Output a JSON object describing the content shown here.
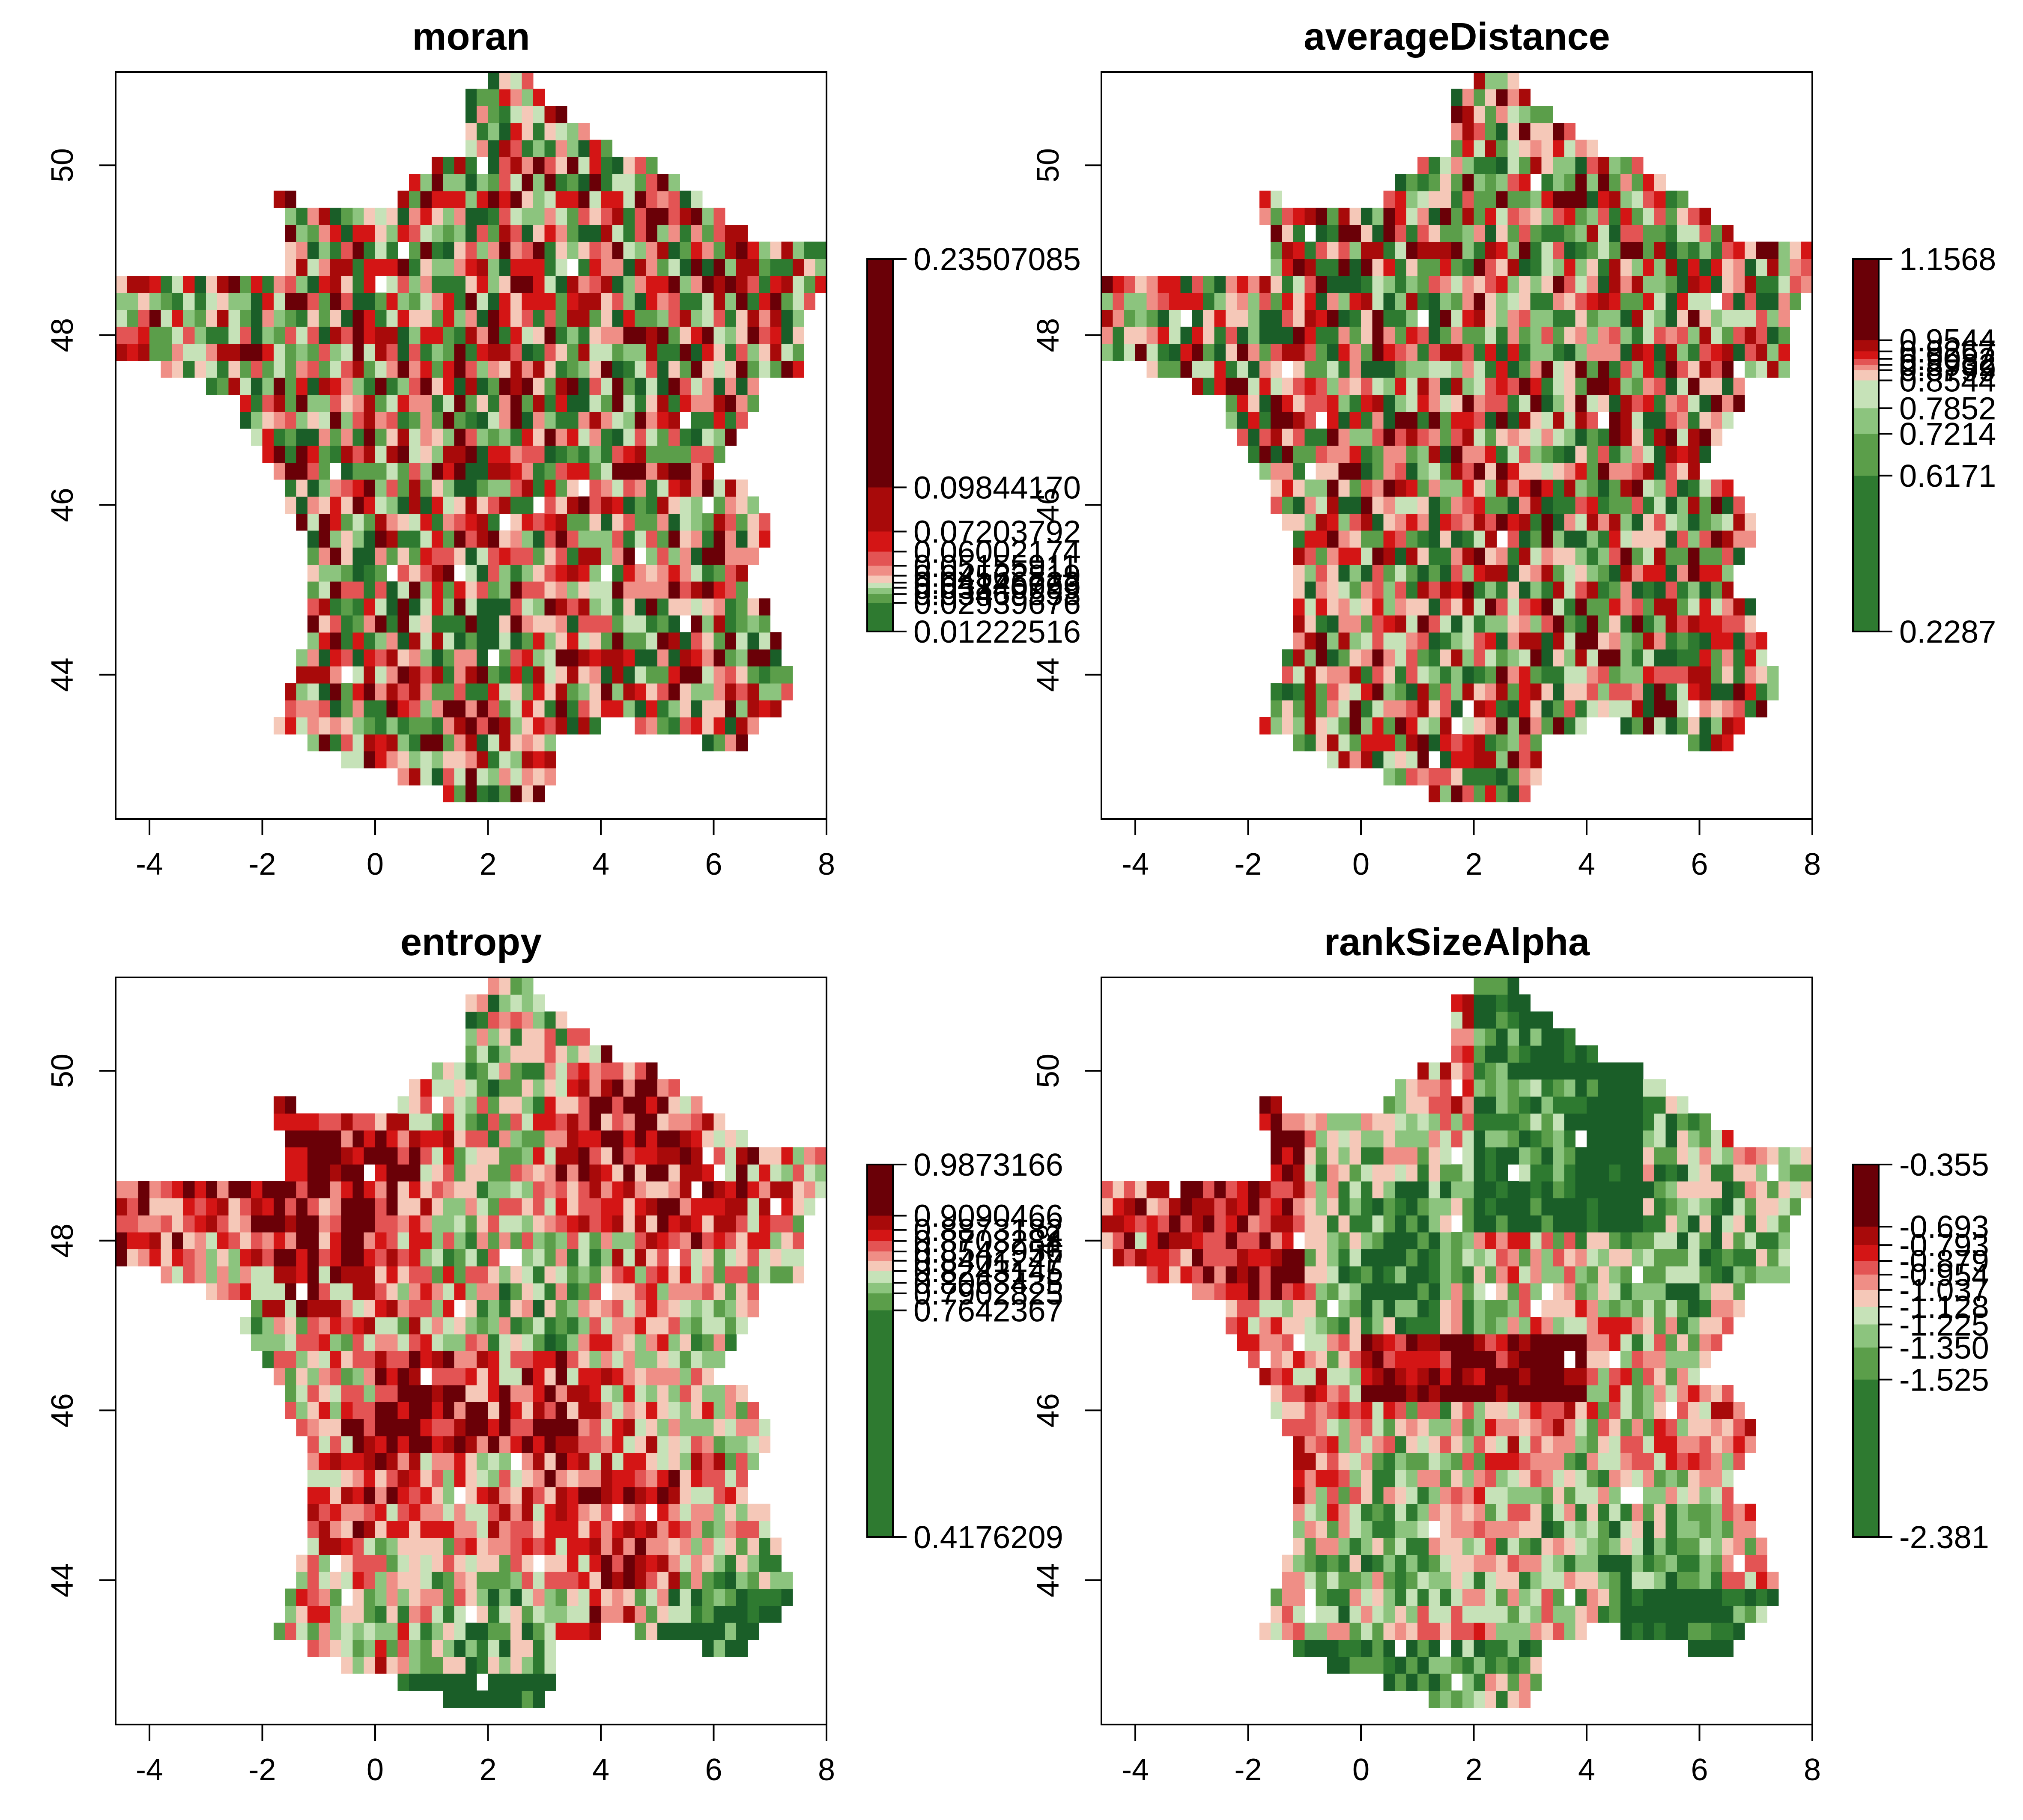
{
  "figure": {
    "panels": [
      {
        "title": "moran",
        "x_ticks": [
          "-4",
          "-2",
          "0",
          "2",
          "4",
          "6",
          "8"
        ],
        "y_ticks": [
          "44",
          "46",
          "48",
          "50"
        ],
        "legend": {
          "min_label": "0.01222516",
          "max_label": "0.23507085",
          "labels": [
            "0.23507085",
            "0.09844170",
            "0.07203792",
            "0.06002174",
            "0.05155911",
            "0.04562819",
            "0.04146723",
            "0.03840999",
            "0.03468553",
            "0.02939676",
            "0.01222516"
          ]
        }
      },
      {
        "title": "averageDistance",
        "x_ticks": [
          "-4",
          "-2",
          "0",
          "2",
          "4",
          "6",
          "8"
        ],
        "y_ticks": [
          "44",
          "46",
          "48",
          "50"
        ],
        "legend": {
          "min_label": "0.2287",
          "max_label": "1.1568",
          "labels": [
            "1.1568",
            "0.9544",
            "0.9267",
            "0.9082",
            "0.8932",
            "0.8799",
            "0.8544",
            "0.7852",
            "0.7214",
            "0.6171",
            "0.2287"
          ]
        }
      },
      {
        "title": "entropy",
        "x_ticks": [
          "-4",
          "-2",
          "0",
          "2",
          "4",
          "6",
          "8"
        ],
        "y_ticks": [
          "44",
          "46",
          "48",
          "50"
        ],
        "legend": {
          "min_label": "0.4176209",
          "max_label": "0.9873166",
          "labels": [
            "0.9873166",
            "0.9090466",
            "0.8873182",
            "0.8703284",
            "0.8542956",
            "0.8401247",
            "0.8243145",
            "0.8063435",
            "0.7902825",
            "0.7642367",
            "0.4176209"
          ]
        }
      },
      {
        "title": "rankSizeAlpha",
        "x_ticks": [
          "-4",
          "-2",
          "0",
          "2",
          "4",
          "6",
          "8"
        ],
        "y_ticks": [
          "44",
          "46",
          "48",
          "50"
        ],
        "legend": {
          "min_label": "-2.381",
          "max_label": "-0.355",
          "labels": [
            "-0.355",
            "-0.693",
            "-0.793",
            "-0.879",
            "-0.954",
            "-1.037",
            "-1.128",
            "-1.225",
            "-1.350",
            "-1.525",
            "-2.381"
          ]
        }
      }
    ],
    "colors": [
      "#1a5e28",
      "#2e7a30",
      "#5b9e4a",
      "#8cc47e",
      "#c6e2b8",
      "#f5c8b8",
      "#ef8e86",
      "#e35454",
      "#d41515",
      "#a80a0a",
      "#6a0007"
    ],
    "map_extent": {
      "lon": [
        -4.6,
        8.0
      ],
      "lat": [
        42.3,
        51.1
      ]
    }
  }
}
